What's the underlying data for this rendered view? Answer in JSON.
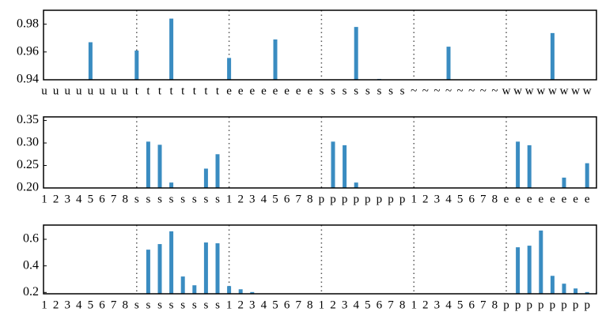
{
  "chart_data": [
    {
      "type": "bar",
      "color": "#3a8cc1",
      "categories": [
        "u",
        "u",
        "u",
        "u",
        "u",
        "u",
        "u",
        "u",
        "t",
        "t",
        "t",
        "t",
        "t",
        "t",
        "t",
        "t",
        "e",
        "e",
        "e",
        "e",
        "e",
        "e",
        "e",
        "e",
        "s",
        "s",
        "s",
        "s",
        "s",
        "s",
        "s",
        "s",
        "~",
        "~",
        "~",
        "~",
        "~",
        "~",
        "~",
        "~",
        "w",
        "w",
        "w",
        "w",
        "w",
        "w",
        "w",
        "w"
      ],
      "values": [
        null,
        null,
        null,
        null,
        0.967,
        null,
        null,
        null,
        0.961,
        null,
        null,
        0.984,
        null,
        null,
        null,
        null,
        0.9557,
        null,
        null,
        null,
        0.969,
        null,
        null,
        null,
        null,
        null,
        null,
        0.978,
        null,
        0.9406,
        null,
        null,
        null,
        null,
        null,
        0.9638,
        null,
        null,
        null,
        null,
        null,
        null,
        null,
        null,
        0.9736,
        null,
        null,
        null
      ],
      "ylim": [
        0.94,
        0.99
      ],
      "yticks": [
        0.94,
        0.96,
        0.98
      ]
    },
    {
      "type": "bar",
      "color": "#3a8cc1",
      "categories": [
        "1",
        "2",
        "3",
        "4",
        "5",
        "6",
        "7",
        "8",
        "s",
        "s",
        "s",
        "s",
        "s",
        "s",
        "s",
        "s",
        "1",
        "2",
        "3",
        "4",
        "5",
        "6",
        "7",
        "8",
        "p",
        "p",
        "p",
        "p",
        "p",
        "p",
        "p",
        "p",
        "1",
        "2",
        "3",
        "4",
        "5",
        "6",
        "7",
        "8",
        "e",
        "e",
        "e",
        "e",
        "e",
        "e",
        "e",
        "e"
      ],
      "values": [
        null,
        null,
        null,
        null,
        null,
        null,
        null,
        null,
        null,
        0.303,
        0.296,
        0.212,
        null,
        null,
        0.243,
        0.275,
        null,
        null,
        null,
        null,
        null,
        null,
        null,
        null,
        null,
        0.303,
        0.295,
        0.212,
        null,
        null,
        null,
        null,
        null,
        null,
        null,
        null,
        null,
        null,
        null,
        null,
        null,
        0.303,
        0.295,
        null,
        null,
        0.223,
        null,
        0.255
      ],
      "ylim": [
        0.2,
        0.358
      ],
      "yticks": [
        {
          "value": 0.2,
          "label": "0.20"
        },
        0.25,
        {
          "value": 0.3,
          "label": "0.30"
        },
        0.35
      ]
    },
    {
      "type": "bar",
      "color": "#3a8cc1",
      "categories": [
        "1",
        "2",
        "3",
        "4",
        "5",
        "6",
        "7",
        "8",
        "s",
        "s",
        "s",
        "s",
        "s",
        "s",
        "s",
        "s",
        "1",
        "2",
        "3",
        "4",
        "5",
        "6",
        "7",
        "8",
        "1",
        "2",
        "3",
        "4",
        "5",
        "6",
        "7",
        "8",
        "1",
        "2",
        "3",
        "4",
        "5",
        "6",
        "7",
        "8",
        "p",
        "p",
        "p",
        "p",
        "p",
        "p",
        "p",
        "p"
      ],
      "values": [
        null,
        null,
        null,
        null,
        null,
        null,
        null,
        null,
        null,
        0.522,
        0.564,
        0.66,
        0.32,
        0.254,
        0.576,
        0.57,
        0.248,
        0.224,
        0.203,
        null,
        null,
        null,
        null,
        null,
        null,
        null,
        null,
        null,
        null,
        null,
        null,
        null,
        null,
        null,
        null,
        null,
        null,
        null,
        null,
        null,
        null,
        0.54,
        0.552,
        0.666,
        0.325,
        0.266,
        0.23,
        0.203
      ],
      "ylim": [
        0.19,
        0.707
      ],
      "yticks": [
        0.2,
        0.4,
        0.6
      ]
    }
  ]
}
